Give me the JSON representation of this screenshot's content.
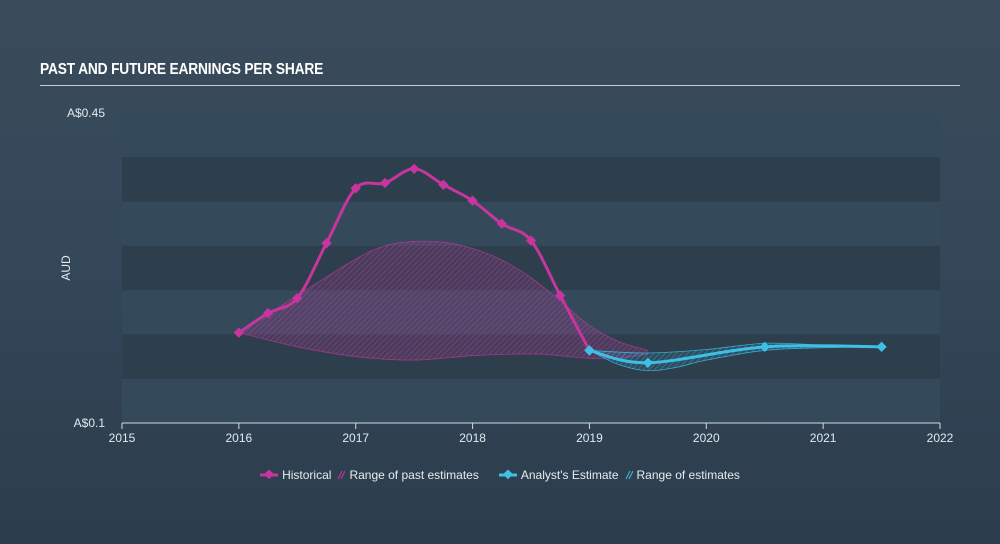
{
  "header": {
    "title": "PAST AND FUTURE EARNINGS PER SHARE"
  },
  "legend": {
    "historical": "Historical",
    "past_range": "Range of past estimates",
    "analyst": "Analyst's Estimate",
    "future_range": "Range of estimates"
  },
  "colors": {
    "historical": "#c8359f",
    "analyst": "#3ec0e6",
    "band_dark": "#2d3e4d",
    "band_light": "#34495a"
  },
  "chart_data": {
    "type": "line",
    "ylabel": "AUD",
    "xlabel": "",
    "ylim": [
      0.1,
      0.45
    ],
    "xlim": [
      2015,
      2022
    ],
    "y_tick_labels": [
      "A$0.45",
      "A$0.1"
    ],
    "x_tick_labels": [
      "2015",
      "2016",
      "2017",
      "2018",
      "2019",
      "2020",
      "2021",
      "2022"
    ],
    "series": [
      {
        "name": "Historical",
        "x": [
          2016.0,
          2016.25,
          2016.5,
          2016.75,
          2017.0,
          2017.25,
          2017.5,
          2017.75,
          2018.0,
          2018.25,
          2018.5,
          2018.75,
          2019.0
        ],
        "y": [
          0.202,
          0.224,
          0.241,
          0.303,
          0.365,
          0.371,
          0.387,
          0.369,
          0.351,
          0.325,
          0.306,
          0.244,
          0.182
        ]
      },
      {
        "name": "Range of past estimates",
        "upper": {
          "x": [
            2016.0,
            2016.5,
            2017.0,
            2017.25,
            2017.5,
            2017.75,
            2018.0,
            2018.25,
            2018.5,
            2018.75,
            2019.0,
            2019.25,
            2019.5
          ],
          "y": [
            0.202,
            0.244,
            0.285,
            0.3,
            0.305,
            0.304,
            0.297,
            0.284,
            0.264,
            0.238,
            0.21,
            0.192,
            0.182
          ]
        },
        "lower": {
          "x": [
            2016.0,
            2016.5,
            2017.0,
            2017.5,
            2018.0,
            2018.5,
            2018.75,
            2019.0,
            2019.25,
            2019.5
          ],
          "y": [
            0.202,
            0.186,
            0.175,
            0.171,
            0.176,
            0.178,
            0.176,
            0.173,
            0.173,
            0.178
          ]
        }
      },
      {
        "name": "Analyst's Estimate",
        "x": [
          2019.0,
          2019.5,
          2020.5,
          2021.5
        ],
        "y": [
          0.182,
          0.168,
          0.186,
          0.186
        ]
      },
      {
        "name": "Range of estimates",
        "upper": {
          "x": [
            2019.0,
            2019.5,
            2020.0,
            2020.5,
            2021.0,
            2021.5
          ],
          "y": [
            0.182,
            0.179,
            0.183,
            0.19,
            0.188,
            0.186
          ]
        },
        "lower": {
          "x": [
            2019.0,
            2019.25,
            2019.5,
            2019.75,
            2020.0,
            2020.5,
            2021.0,
            2021.5
          ],
          "y": [
            0.182,
            0.166,
            0.159,
            0.163,
            0.171,
            0.182,
            0.185,
            0.186
          ]
        }
      }
    ]
  }
}
